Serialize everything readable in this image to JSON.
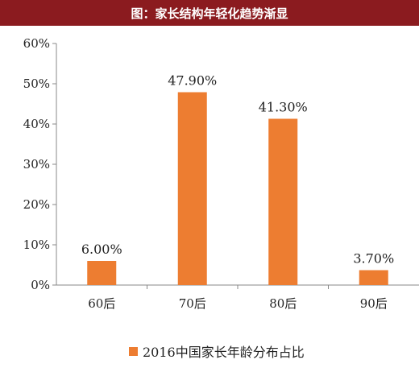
{
  "header": {
    "title": "图：家长结构年轻化趋势渐显"
  },
  "chart_data": {
    "type": "bar",
    "categories": [
      "60后",
      "70后",
      "80后",
      "90后"
    ],
    "series": [
      {
        "name": "2016中国家长年龄分布占比",
        "values": [
          6.0,
          47.9,
          41.3,
          3.7
        ],
        "color": "#ed7d31"
      }
    ],
    "data_labels": [
      "6.00%",
      "47.90%",
      "41.30%",
      "3.70%"
    ],
    "y_ticks": [
      "0%",
      "10%",
      "20%",
      "30%",
      "40%",
      "50%",
      "60%"
    ],
    "ylim": [
      0,
      60
    ],
    "grid": false,
    "legend_position": "bottom"
  },
  "colors": {
    "title_bg": "#8b1b1f",
    "bar": "#ed7d31",
    "axis": "#888888"
  }
}
